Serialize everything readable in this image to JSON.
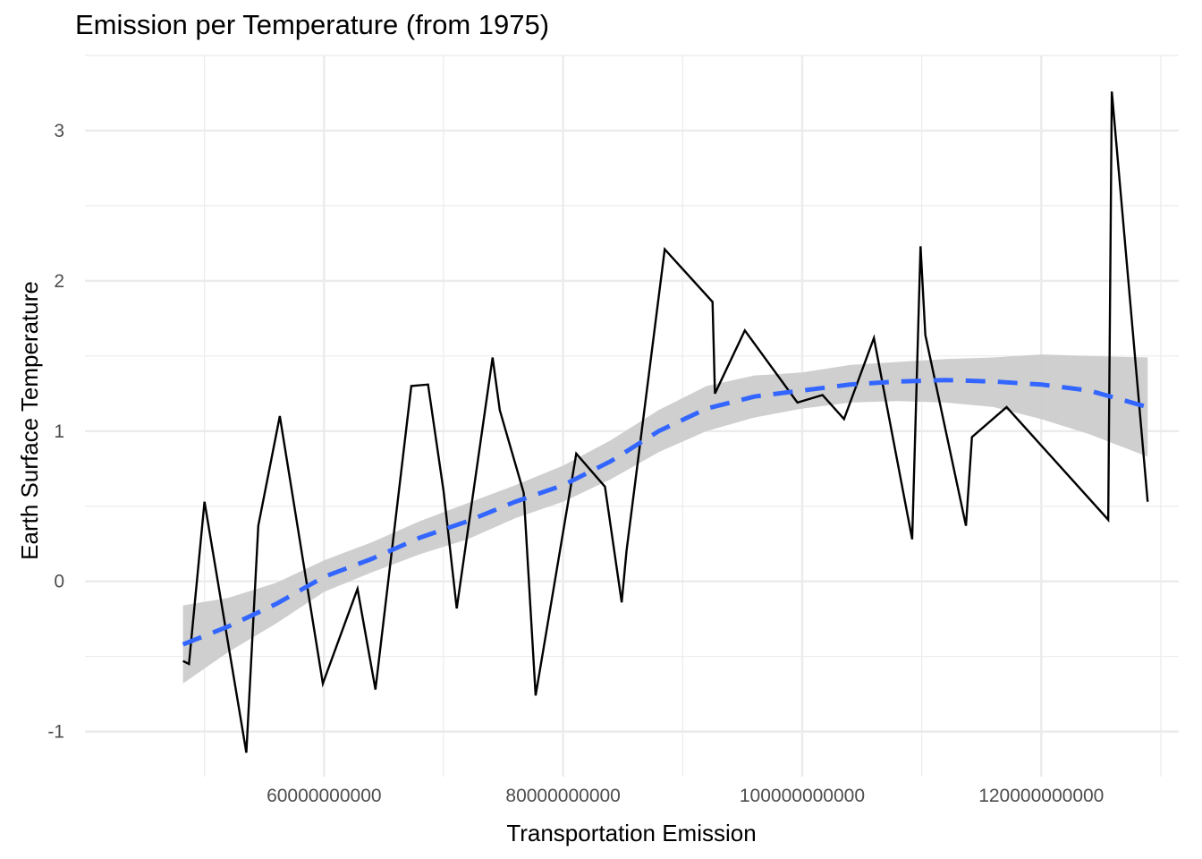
{
  "chart_data": {
    "type": "line",
    "title": "Emission per Temperature (from 1975)",
    "xlabel": "Transportation Emission",
    "ylabel": "Earth Surface Temperature",
    "xlim": [
      40000000000,
      131500000000
    ],
    "ylim": [
      -1.3,
      3.5
    ],
    "x_ticks": [
      60000000000,
      80000000000,
      100000000000,
      120000000000
    ],
    "x_tick_labels": [
      "60000000000",
      "80000000000",
      "100000000000",
      "120000000000"
    ],
    "y_ticks": [
      -1,
      0,
      1,
      2,
      3
    ],
    "y_tick_labels": [
      "-1",
      "0",
      "1",
      "2",
      "3"
    ],
    "grid": true,
    "colors": {
      "line": "#000000",
      "trend": "#3366ff",
      "band": "#cccccc",
      "grid": "#ebebeb"
    },
    "series": [
      {
        "x": [
          48200000000,
          48700000000,
          50000000000,
          53500000000,
          54500000000,
          56300000000,
          59900000000,
          62800000000,
          64300000000,
          67300000000,
          68700000000,
          70000000000,
          71100000000,
          74100000000,
          74700000000,
          76700000000,
          77700000000,
          81100000000,
          83500000000,
          84900000000,
          85300000000,
          88500000000,
          92500000000,
          92700000000,
          95200000000,
          99600000000,
          101700000000,
          103500000000,
          106000000000,
          109200000000,
          109900000000,
          110300000000,
          113700000000,
          114200000000,
          117100000000,
          125600000000,
          125900000000,
          128900000000
        ],
        "y": [
          -0.53,
          -0.55,
          0.53,
          -1.14,
          0.37,
          1.1,
          -0.68,
          -0.05,
          -0.72,
          1.3,
          1.31,
          0.6,
          -0.18,
          1.49,
          1.14,
          0.59,
          -0.76,
          0.85,
          0.63,
          -0.14,
          0.2,
          2.21,
          1.86,
          1.25,
          1.67,
          1.19,
          1.24,
          1.08,
          1.62,
          0.28,
          2.23,
          1.64,
          0.37,
          0.96,
          1.16,
          0.41,
          3.26,
          0.53
        ]
      },
      {
        "style": "dashed",
        "x": [
          48200000000,
          52000000000,
          56000000000,
          60000000000,
          64000000000,
          68000000000,
          72000000000,
          76000000000,
          80000000000,
          84000000000,
          88000000000,
          92000000000,
          96000000000,
          100000000000,
          104000000000,
          108000000000,
          112000000000,
          116000000000,
          120000000000,
          124000000000,
          128900000000
        ],
        "y": [
          -0.42,
          -0.3,
          -0.15,
          0.03,
          0.15,
          0.29,
          0.4,
          0.53,
          0.64,
          0.8,
          1.0,
          1.15,
          1.23,
          1.27,
          1.31,
          1.33,
          1.34,
          1.33,
          1.31,
          1.27,
          1.16
        ],
        "ci_lower": [
          -0.68,
          -0.47,
          -0.28,
          -0.07,
          0.06,
          0.18,
          0.28,
          0.42,
          0.53,
          0.68,
          0.86,
          1.0,
          1.09,
          1.15,
          1.19,
          1.2,
          1.19,
          1.16,
          1.08,
          0.98,
          0.83
        ],
        "ci_upper": [
          -0.16,
          -0.11,
          -0.01,
          0.14,
          0.26,
          0.4,
          0.52,
          0.64,
          0.77,
          0.94,
          1.14,
          1.3,
          1.37,
          1.39,
          1.44,
          1.46,
          1.48,
          1.49,
          1.51,
          1.5,
          1.49
        ]
      }
    ]
  }
}
